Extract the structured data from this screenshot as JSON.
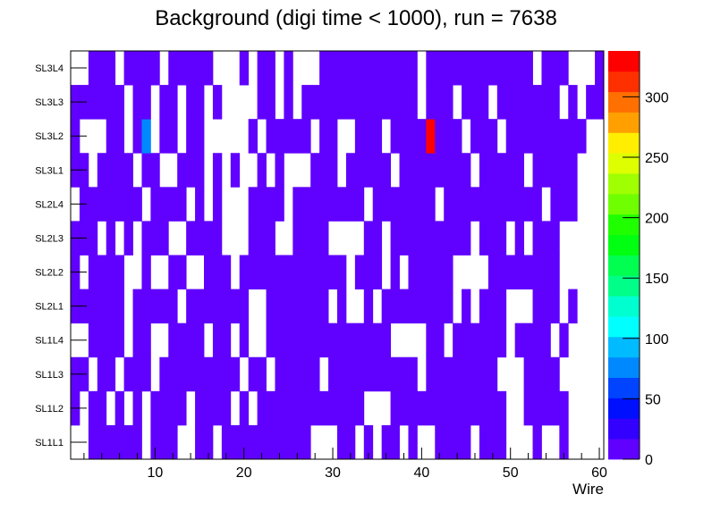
{
  "chart_data": {
    "type": "heatmap",
    "title": "Background (digi time < 1000), run = 7638",
    "xlabel": "Wire",
    "ylabel": "",
    "xlim": [
      0.5,
      60.5
    ],
    "x_ticks": [
      "10",
      "20",
      "30",
      "40",
      "50",
      "60"
    ],
    "y_categories": [
      "SL1L1",
      "SL1L2",
      "SL1L3",
      "SL1L4",
      "SL2L1",
      "SL2L2",
      "SL2L3",
      "SL2L4",
      "SL3L1",
      "SL3L2",
      "SL3L3",
      "SL3L4"
    ],
    "zlim": [
      0,
      338
    ],
    "z_ticks": [
      "0",
      "50",
      "100",
      "150",
      "200",
      "250",
      "300"
    ],
    "palette": [
      "#6000ff",
      "#3300ff",
      "#0010ff",
      "#0044ff",
      "#0088ff",
      "#00bbff",
      "#00ffff",
      "#00ffd0",
      "#00ff88",
      "#00ff50",
      "#00ff10",
      "#20ff00",
      "#70ff00",
      "#a0ff00",
      "#ddff00",
      "#ffee00",
      "#ffa000",
      "#ff7000",
      "#ff3000",
      "#ff0000"
    ],
    "encoding_note": "each row string lists wires 1-60: '0' = empty, '1' = low count (~8), 'c' = ~76, 'R' = ~338",
    "level_values": {
      "0": 0,
      "1": 8,
      "c": 76,
      "R": 338
    },
    "rows": {
      "SL1L1": "001111110111001101111111111000110101101001111011100010010000",
      "SL1L2": "101101010111101111010111111111111000111111111111100111110000",
      "SL1L3": "110110111011111111101101111101111111111011111111000111100000",
      "SL1L4": "001111011001111011010011111111111111000011011111101111010000",
      "SL2L1": "111111011111011111110011111110100101111111101011100011101000",
      "SL2L2": "101111001001100111011111111111101110101111100001111111100000",
      "SL2L3": "111010101110011110001110011110000110111111111011101011100000",
      "SL2L4": "011111110111101010001111011111111011111110111111111110111000",
      "SL3L1": "110111101100111010100101000111011111011111111011111011111000",
      "SL3L2": "10001101c0110110000010111110110011101111R1110111011111111100",
      "SL3L3": "111111011011011010000110101111111111111011101110111111101011",
      "SL3L4": "001110111101111100010110100011111111111011111111111101110001"
    }
  }
}
